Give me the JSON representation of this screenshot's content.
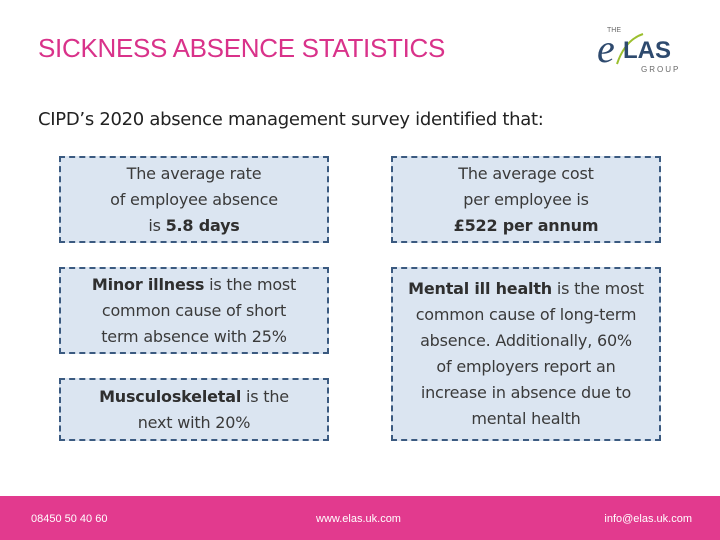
{
  "header": {
    "title": "SICKNESS ABSENCE STATISTICS",
    "logo": {
      "the": "THE",
      "name": "eLAS",
      "group": "GROUP"
    }
  },
  "intro": "CIPD’s 2020 absence management survey identified that:",
  "boxes": {
    "rate": {
      "line1": "The average rate",
      "line2": "of employee absence",
      "pre": "is ",
      "bold": "5.8 days"
    },
    "cost": {
      "line1": "The average cost",
      "line2": "per employee is",
      "bold": "£522 per annum"
    },
    "minor": {
      "bold": "Minor illness",
      "rest1": " is the most",
      "line2": "common cause of short",
      "line3": "term absence with 25%"
    },
    "musc": {
      "bold": "Musculoskeletal",
      "rest1": " is the",
      "line2": "next with 20%"
    },
    "mental": {
      "bold": "Mental ill health",
      "rest1": " is the most",
      "line2": "common cause of long-term",
      "line3": "absence. Additionally, 60%",
      "line4": "of employers report an",
      "line5": "increase in absence due to",
      "line6": "mental health"
    }
  },
  "footer": {
    "phone": "08450 50 40 60",
    "website": "www.elas.uk.com",
    "email": "info@elas.uk.com"
  },
  "colors": {
    "title": "#d9328a",
    "footer": "#e23a8e",
    "box_fill": "#dbe5f1",
    "box_border": "#3b5a80"
  }
}
